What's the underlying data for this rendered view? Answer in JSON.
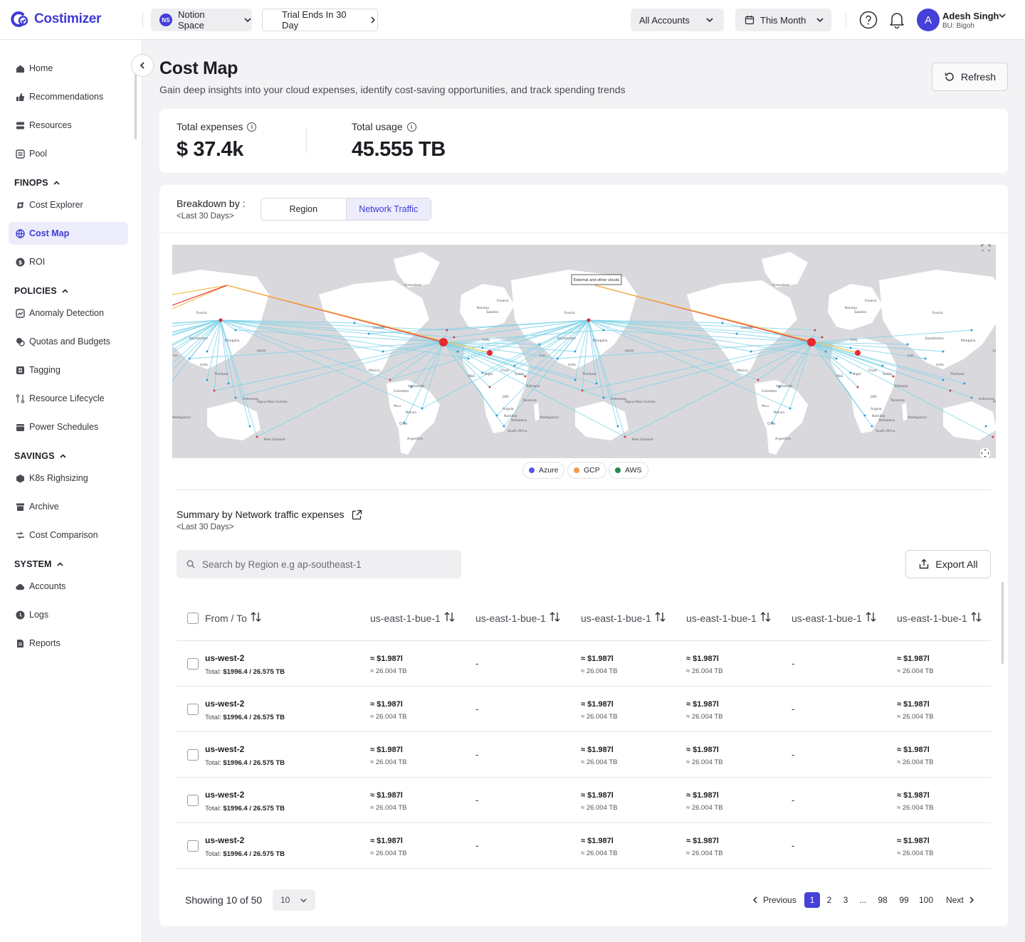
{
  "app": {
    "name": "Costimizer"
  },
  "topbar": {
    "workspace_badge": "NS",
    "workspace": "Notion Space",
    "trial": "Trial Ends In 30 Day",
    "accounts": "All Accounts",
    "period": "This Month",
    "user_initial": "A",
    "user_name": "Adesh Singh",
    "user_bu": "BU: Bigoh"
  },
  "sidebar": {
    "items_top": [
      {
        "label": "Home",
        "icon": "home-icon"
      },
      {
        "label": "Recommendations",
        "icon": "thumbs-up-icon"
      },
      {
        "label": "Resources",
        "icon": "server-icon"
      },
      {
        "label": "Pool",
        "icon": "pool-icon"
      }
    ],
    "finops": {
      "label": "FINOPS",
      "items": [
        {
          "label": "Cost Explorer",
          "icon": "explorer-icon"
        },
        {
          "label": "Cost Map",
          "icon": "globe-icon",
          "active": true
        },
        {
          "label": "ROI",
          "icon": "dollar-icon"
        }
      ]
    },
    "policies": {
      "label": "POLICIES",
      "items": [
        {
          "label": "Anomaly Detection",
          "icon": "chart-icon"
        },
        {
          "label": "Quotas and Budgets",
          "icon": "coins-icon"
        },
        {
          "label": "Tagging",
          "icon": "tag-icon"
        },
        {
          "label": "Resource Lifecycle",
          "icon": "lifecycle-icon"
        },
        {
          "label": "Power Schedules",
          "icon": "calendar-icon"
        }
      ]
    },
    "savings": {
      "label": "SAVINGS",
      "items": [
        {
          "label": "K8s Righsizing",
          "icon": "cube-icon"
        },
        {
          "label": "Archive",
          "icon": "archive-icon"
        },
        {
          "label": "Cost Comparison",
          "icon": "compare-icon"
        }
      ]
    },
    "system": {
      "label": "SYSTEM",
      "items": [
        {
          "label": "Accounts",
          "icon": "cloud-icon"
        },
        {
          "label": "Logs",
          "icon": "clock-icon"
        },
        {
          "label": "Reports",
          "icon": "report-icon"
        }
      ]
    }
  },
  "page": {
    "title": "Cost Map",
    "subtitle": "Gain deep insights into your cloud expenses, identify cost-saving opportunities, and track spending trends",
    "refresh_label": "Refresh"
  },
  "metrics": {
    "expenses_label": "Total expenses",
    "expenses_value": "$ 37.4k",
    "usage_label": "Total usage",
    "usage_value": "45.555 TB"
  },
  "breakdown": {
    "label": "Breakdown by :",
    "period": "<Last 30 Days>",
    "tabs": [
      "Region",
      "Network Traffic"
    ],
    "active_tab": "Network Traffic"
  },
  "map": {
    "tooltip": "External and other clouds",
    "place_labels": [
      "Greenland",
      "Russia",
      "Canada",
      "Kazakhstan",
      "Mongolia",
      "Japan",
      "Mexico",
      "Venezuela",
      "Colombia",
      "Peru",
      "Bolivia",
      "Chile",
      "Argentina",
      "Mali",
      "Niger",
      "Chad",
      "Sudan",
      "Ethiopia",
      "DRC",
      "Tanzania",
      "Angola",
      "Namibia",
      "Botswana",
      "South Africa",
      "Madagascar",
      "Thailand",
      "Indonesia",
      "Papua New Guinea",
      "New Zealand",
      "Finland",
      "Norway",
      "Sweden",
      "Italy",
      "Iran",
      "India"
    ],
    "legend": [
      {
        "label": "Azure",
        "color": "#5a55e0"
      },
      {
        "label": "GCP",
        "color": "#f39a4a"
      },
      {
        "label": "AWS",
        "color": "#1f8a4c"
      }
    ]
  },
  "summary": {
    "title": "Summary by Network traffic expenses",
    "period": "<Last 30 Days>",
    "search_placeholder": "Search by Region e.g ap-southeast-1",
    "export_label": "Export All"
  },
  "table": {
    "first_header": "From /  To",
    "columns": [
      "us-east-1-bue-1",
      "us-east-1-bue-1",
      "us-east-1-bue-1",
      "us-east-1-bue-1",
      "us-east-1-bue-1",
      "us-east-1-bue-1"
    ],
    "rows": [
      {
        "region": "us-west-2",
        "total_label": "Total:",
        "total": "$1996.4 / 26.575 TB",
        "cells": [
          [
            "≈ $1.987l",
            "≈ 26.004 TB"
          ],
          [
            "-"
          ],
          [
            "≈ $1.987l",
            "≈ 26.004 TB"
          ],
          [
            "≈ $1.987l",
            "≈ 26.004 TB"
          ],
          [
            "-"
          ],
          [
            "≈ $1.987l",
            "≈ 26.004 TB"
          ]
        ]
      },
      {
        "region": "us-west-2",
        "total_label": "Total:",
        "total": "$1996.4 / 26.575 TB",
        "cells": [
          [
            "≈ $1.987l",
            "≈ 26.004 TB"
          ],
          [
            "-"
          ],
          [
            "≈ $1.987l",
            "≈ 26.004 TB"
          ],
          [
            "≈ $1.987l",
            "≈ 26.004 TB"
          ],
          [
            "-"
          ],
          [
            "≈ $1.987l",
            "≈ 26.004 TB"
          ]
        ]
      },
      {
        "region": "us-west-2",
        "total_label": "Total:",
        "total": "$1996.4 / 26.575 TB",
        "cells": [
          [
            "≈ $1.987l",
            "≈ 26.004 TB"
          ],
          [
            "-"
          ],
          [
            "≈ $1.987l",
            "≈ 26.004 TB"
          ],
          [
            "≈ $1.987l",
            "≈ 26.004 TB"
          ],
          [
            "-"
          ],
          [
            "≈ $1.987l",
            "≈ 26.004 TB"
          ]
        ]
      },
      {
        "region": "us-west-2",
        "total_label": "Total:",
        "total": "$1996.4 / 26.575 TB",
        "cells": [
          [
            "≈ $1.987l",
            "≈ 26.004 TB"
          ],
          [
            "-"
          ],
          [
            "≈ $1.987l",
            "≈ 26.004 TB"
          ],
          [
            "≈ $1.987l",
            "≈ 26.004 TB"
          ],
          [
            "-"
          ],
          [
            "≈ $1.987l",
            "≈ 26.004 TB"
          ]
        ]
      },
      {
        "region": "us-west-2",
        "total_label": "Total:",
        "total": "$1996.4 / 26.575 TB",
        "cells": [
          [
            "≈ $1.987l",
            "≈ 26.004 TB"
          ],
          [
            "-"
          ],
          [
            "≈ $1.987l",
            "≈ 26.004 TB"
          ],
          [
            "≈ $1.987l",
            "≈ 26.004 TB"
          ],
          [
            "-"
          ],
          [
            "≈ $1.987l",
            "≈ 26.004 TB"
          ]
        ]
      }
    ]
  },
  "pagination": {
    "showing": "Showing 10 of 50",
    "page_size": "10",
    "previous": "Previous",
    "next": "Next",
    "pages": [
      "1",
      "2",
      "3",
      "...",
      "98",
      "99",
      "100"
    ],
    "current": "1"
  }
}
